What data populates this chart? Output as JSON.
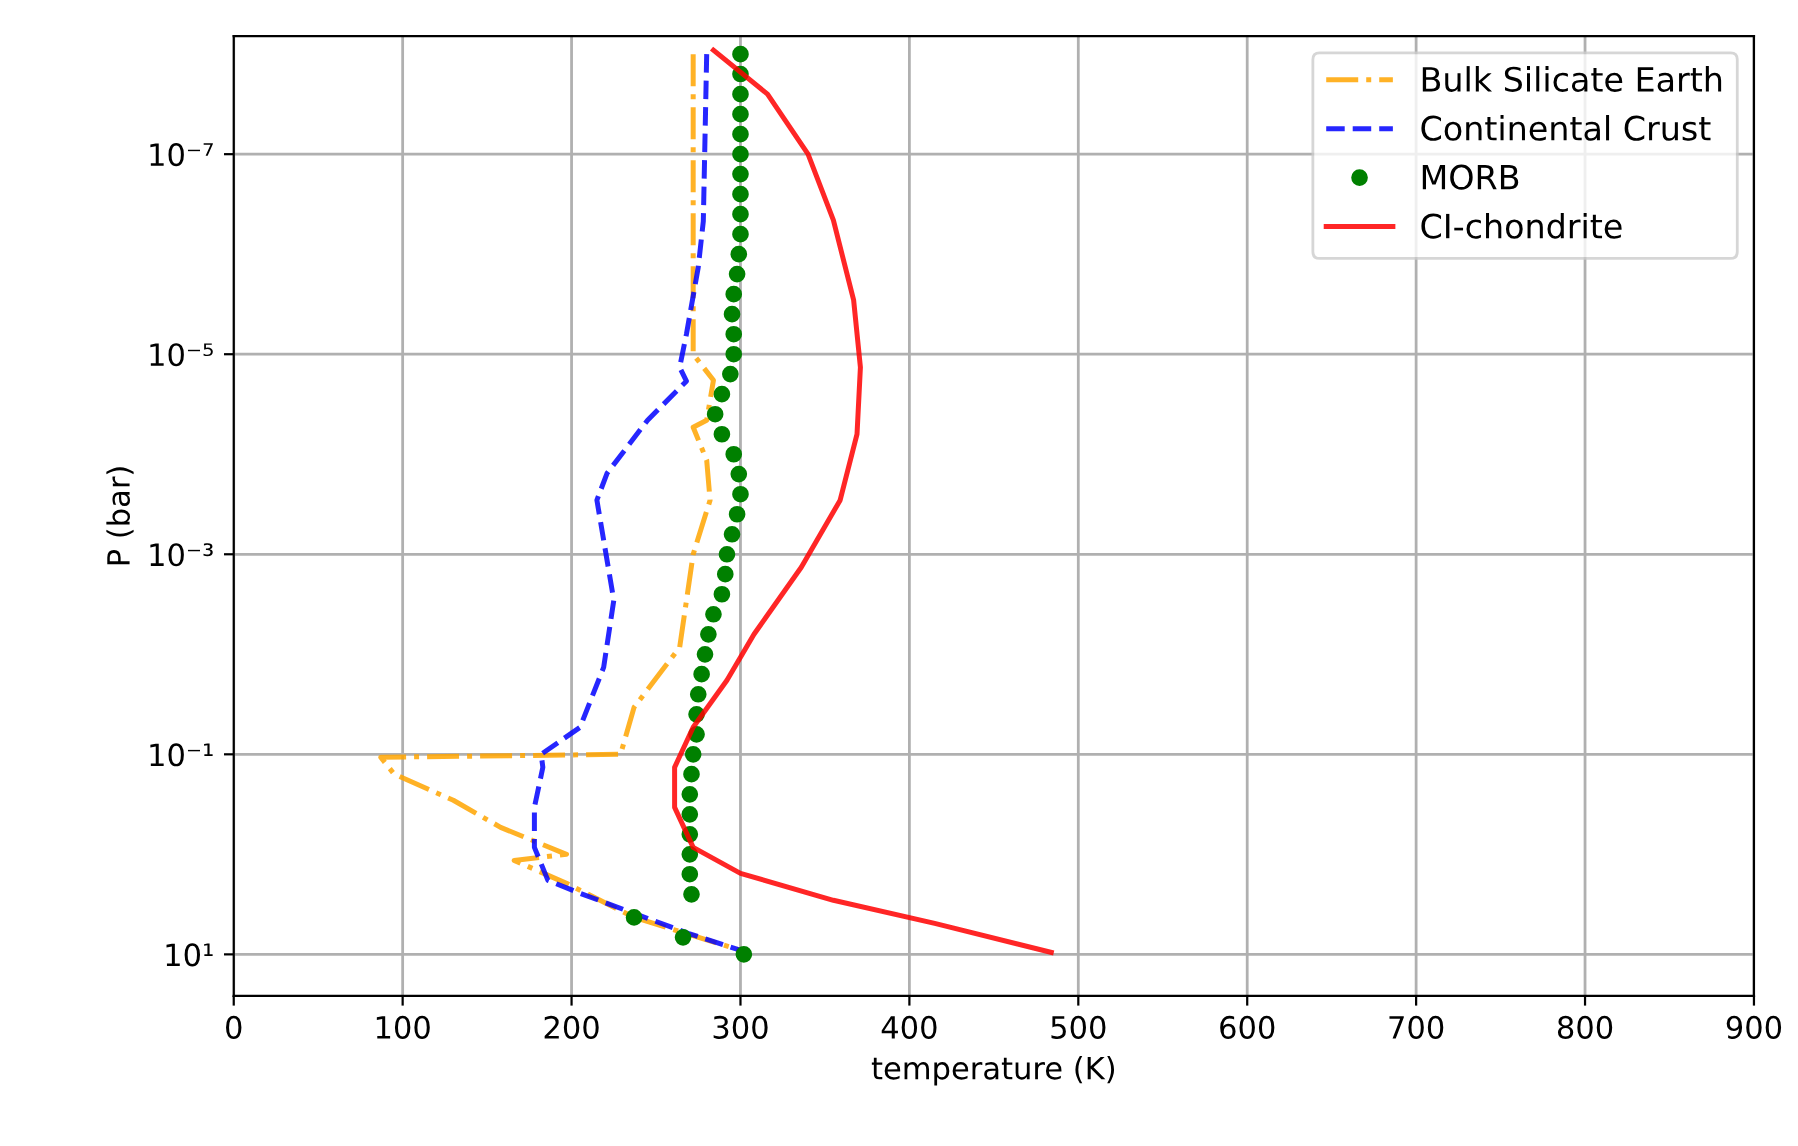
{
  "chart_data": {
    "type": "line",
    "xlabel": "temperature (K)",
    "ylabel": "P (bar)",
    "xlim": [
      0,
      900
    ],
    "xticks": [
      0,
      100,
      200,
      300,
      400,
      500,
      600,
      700,
      800,
      900
    ],
    "log": "y",
    "ylim": [
      26,
      6.6e-09
    ],
    "yticks": [
      {
        "value": 1e-07,
        "label": "10⁻⁷"
      },
      {
        "value": 1e-05,
        "label": "10⁻⁵"
      },
      {
        "value": 0.001,
        "label": "10⁻³"
      },
      {
        "value": 0.1,
        "label": "10⁻¹"
      },
      {
        "value": 10,
        "label": "10¹"
      }
    ],
    "grid": true,
    "legend": "top right",
    "series": [
      {
        "name": "Bulk Silicate Earth",
        "line_style": "dashdot",
        "marker": "none",
        "color": "#ffa500",
        "x": [
          272,
          272,
          284,
          280,
          272,
          280,
          282,
          272,
          264,
          237,
          229,
          87,
          95,
          130,
          158,
          197,
          166,
          197,
          237,
          304
        ],
        "values": [
          1e-08,
          1e-05,
          1.82e-05,
          4.57e-05,
          5.37e-05,
          0.000115,
          0.000288,
          0.001,
          0.00851,
          0.0339,
          0.1,
          0.107,
          0.158,
          0.288,
          0.537,
          1,
          1.15,
          1.95,
          4.27,
          9.55
        ]
      },
      {
        "name": "Continental Crust",
        "line_style": "dashed",
        "marker": "none",
        "color": "#0000ff",
        "x": [
          280,
          278,
          275,
          268,
          264,
          268,
          245,
          221,
          215,
          225,
          219,
          205,
          182,
          183,
          178,
          178,
          186,
          205,
          237,
          269,
          304
        ],
        "values": [
          1e-08,
          4.68e-07,
          1.35e-06,
          6.31e-06,
          1.35e-05,
          1.86e-05,
          4.57e-05,
          0.000155,
          0.000288,
          0.00288,
          0.0135,
          0.0537,
          0.1,
          0.135,
          0.339,
          0.851,
          1.82,
          2.45,
          3.89,
          6.17,
          9.55
        ]
      },
      {
        "name": "MORB",
        "type": "scatter",
        "marker": "circle",
        "color": "#008000",
        "x": [
          300,
          300,
          300,
          300,
          300,
          300,
          300,
          300,
          300,
          300,
          299,
          298,
          296,
          295,
          296,
          296,
          294,
          289,
          285,
          289,
          296,
          299,
          300,
          298,
          295,
          292,
          291,
          289,
          284,
          281,
          279,
          277,
          275,
          274,
          274,
          272,
          271,
          270,
          270,
          270,
          270,
          270,
          271,
          237,
          266,
          302
        ],
        "values": [
          1e-08,
          1.58e-08,
          2.51e-08,
          3.98e-08,
          6.31e-08,
          1e-07,
          1.58e-07,
          2.51e-07,
          3.98e-07,
          6.31e-07,
          1e-06,
          1.58e-06,
          2.51e-06,
          3.98e-06,
          6.31e-06,
          1e-05,
          1.58e-05,
          2.51e-05,
          3.98e-05,
          6.31e-05,
          0.0001,
          0.000158,
          0.000251,
          0.000398,
          0.000631,
          0.001,
          0.00158,
          0.00251,
          0.00398,
          0.00631,
          0.01,
          0.0158,
          0.0251,
          0.0398,
          0.0631,
          0.1,
          0.158,
          0.251,
          0.398,
          0.631,
          1,
          1.58,
          2.51,
          4.27,
          6.76,
          10
        ]
      },
      {
        "name": "CI-chondrite",
        "line_style": "solid",
        "marker": "none",
        "color": "#ff0000",
        "x": [
          284,
          316,
          340,
          355,
          367,
          371,
          369,
          359,
          336,
          308,
          292,
          272,
          261,
          261,
          272,
          300,
          355,
          415,
          484
        ],
        "values": [
          9.12e-09,
          2.51e-08,
          1e-07,
          4.57e-07,
          2.88e-06,
          1.35e-05,
          6.31e-05,
          0.000288,
          0.00135,
          0.00631,
          0.0182,
          0.0537,
          0.135,
          0.339,
          0.851,
          1.55,
          2.88,
          4.9,
          9.55
        ]
      }
    ]
  }
}
